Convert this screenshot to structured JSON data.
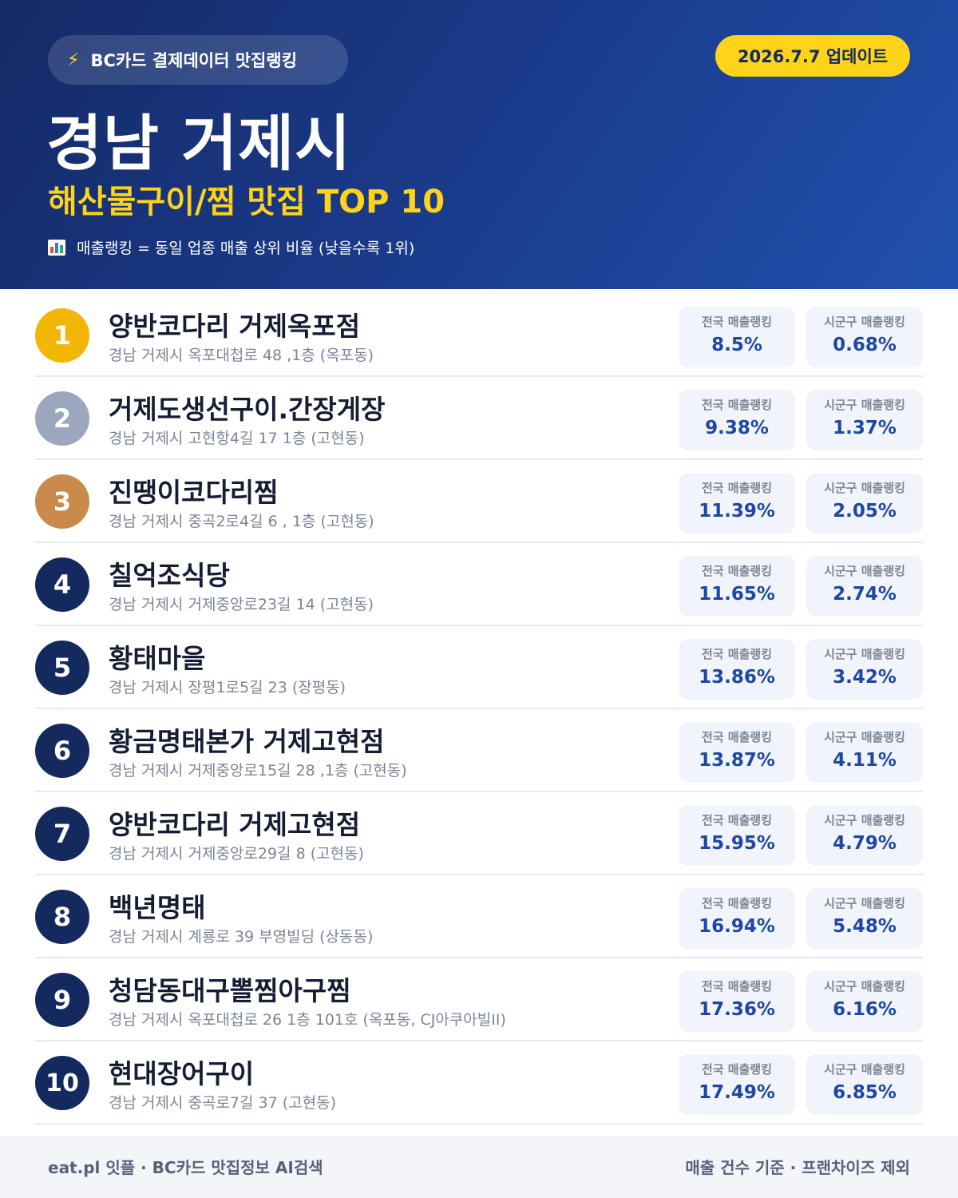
{
  "header": {
    "source_label": "BC카드 결제데이터 맛집랭킹",
    "source_icon": "lightning-bolt-icon",
    "update_label": "2026.7.7 업데이트",
    "city_title": "경남 거제시",
    "category_title": "해산물구이/찜 맛집 TOP 10",
    "ranking_note": "매출랭킹 = 동일 업종 매출 상위 비율 (낮을수록 1위)",
    "ranking_note_icon": "bar-chart-icon"
  },
  "colors": {
    "header_dark": "#142a66",
    "header_light": "#2151ad",
    "accent_yellow": "#ffd31a",
    "rank_gold": "#f2b705",
    "rank_silver": "#9aa7bd",
    "rank_bronze": "#c98a4b",
    "rank_default": "#142a5e",
    "stat_value": "#1e47a3"
  },
  "restaurants": [
    {
      "rank": "1",
      "name": "양반코다리 거제옥포점",
      "address": "경남 거제시 옥포대첩로 48 ,1층 (옥포동)",
      "national_label": "전국 매출랭킹",
      "national": "8.5%",
      "district_label": "시군구 매출랭킹",
      "district": "0.68%"
    },
    {
      "rank": "2",
      "name": "거제도생선구이.간장게장",
      "address": "경남 거제시 고현항4길 17 1층 (고현동)",
      "national_label": "전국 매출랭킹",
      "national": "9.38%",
      "district_label": "시군구 매출랭킹",
      "district": "1.37%"
    },
    {
      "rank": "3",
      "name": "진땡이코다리찜",
      "address": "경남 거제시 중곡2로4길 6 , 1층 (고현동)",
      "national_label": "전국 매출랭킹",
      "national": "11.39%",
      "district_label": "시군구 매출랭킹",
      "district": "2.05%"
    },
    {
      "rank": "4",
      "name": "칠억조식당",
      "address": "경남 거제시 거제중앙로23길 14 (고현동)",
      "national_label": "전국 매출랭킹",
      "national": "11.65%",
      "district_label": "시군구 매출랭킹",
      "district": "2.74%"
    },
    {
      "rank": "5",
      "name": "황태마을",
      "address": "경남 거제시 장평1로5길 23 (장평동)",
      "national_label": "전국 매출랭킹",
      "national": "13.86%",
      "district_label": "시군구 매출랭킹",
      "district": "3.42%"
    },
    {
      "rank": "6",
      "name": "황금명태본가 거제고현점",
      "address": "경남 거제시 거제중앙로15길 28 ,1층 (고현동)",
      "national_label": "전국 매출랭킹",
      "national": "13.87%",
      "district_label": "시군구 매출랭킹",
      "district": "4.11%"
    },
    {
      "rank": "7",
      "name": "양반코다리 거제고현점",
      "address": "경남 거제시 거제중앙로29길 8 (고현동)",
      "national_label": "전국 매출랭킹",
      "national": "15.95%",
      "district_label": "시군구 매출랭킹",
      "district": "4.79%"
    },
    {
      "rank": "8",
      "name": "백년명태",
      "address": "경남 거제시 계룡로 39 부영빌딩 (상동동)",
      "national_label": "전국 매출랭킹",
      "national": "16.94%",
      "district_label": "시군구 매출랭킹",
      "district": "5.48%"
    },
    {
      "rank": "9",
      "name": "청담동대구뽈찜아구찜",
      "address": "경남 거제시 옥포대첩로 26 1층 101호 (옥포동, CJ아쿠아빌II)",
      "national_label": "전국 매출랭킹",
      "national": "17.36%",
      "district_label": "시군구 매출랭킹",
      "district": "6.16%"
    },
    {
      "rank": "10",
      "name": "현대장어구이",
      "address": "경남 거제시 중곡로7길 37 (고현동)",
      "national_label": "전국 매출랭킹",
      "national": "17.49%",
      "district_label": "시군구 매출랭킹",
      "district": "6.85%"
    }
  ],
  "footer": {
    "left_text": "eat.pl 잇플 · BC카드 맛집정보 AI검색",
    "right_text": "매출 건수 기준 · 프랜차이즈 제외"
  }
}
